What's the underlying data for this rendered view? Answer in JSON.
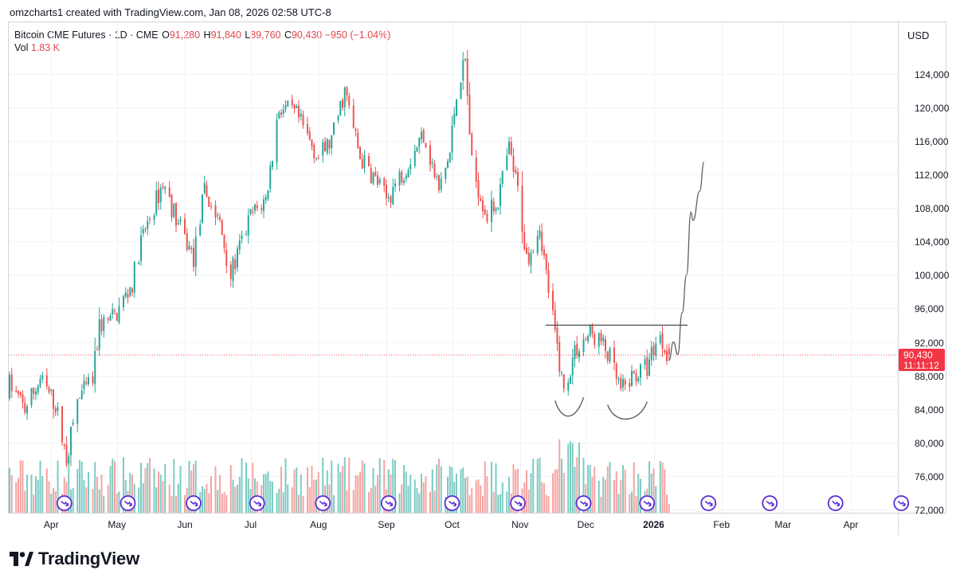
{
  "caption": "omzcharts1 created with TradingView.com, Jan 08, 2026 02:58 UTC-8",
  "legend": {
    "symbol": "Bitcoin CME Futures · 1D · CME",
    "o_label": "O",
    "o_value": "91,280",
    "h_label": "H",
    "h_value": "91,840",
    "l_label": "L",
    "l_value": "89,760",
    "c_label": "C",
    "c_value": "90,430",
    "change": "−950 (−1.04%)",
    "vol_label": "Vol",
    "vol_value": "1.83 K"
  },
  "currency": "USD",
  "brand": "TradingView",
  "colors": {
    "up": "#26a69a",
    "down": "#ef5350",
    "up_vol": "#7dcbc3",
    "down_vol": "#f5a4a2",
    "event": "#5b2bd6",
    "drawing": "#555555"
  },
  "chart_data": {
    "type": "candlestick",
    "title": "Bitcoin CME Futures · 1D · CME",
    "y_axis": {
      "range": [
        71000,
        130000
      ],
      "ticks": [
        72000,
        76000,
        80000,
        84000,
        88000,
        92000,
        96000,
        100000,
        104000,
        108000,
        112000,
        116000,
        120000,
        124000
      ],
      "tick_labels": [
        "72,000",
        "76,000",
        "80,000",
        "84,000",
        "88,000",
        "92,000",
        "96,000",
        "100,000",
        "104,000",
        "108,000",
        "112,000",
        "116,000",
        "120,000",
        "124,000"
      ]
    },
    "x_axis": {
      "labels": [
        "Apr",
        "May",
        "Jun",
        "Jul",
        "Aug",
        "Sep",
        "Oct",
        "Nov",
        "Dec",
        "2026",
        "Feb",
        "Mar",
        "Apr"
      ],
      "bold_label": "2026",
      "start": "2025-03-13",
      "end": "2026-05-01"
    },
    "last_price": {
      "value": 90430,
      "label": "90,430",
      "countdown": "11:11:12"
    },
    "price_waypoints": [
      [
        "2025-03-13",
        87000
      ],
      [
        "2025-03-20",
        84000
      ],
      [
        "2025-03-27",
        87500
      ],
      [
        "2025-04-03",
        84500
      ],
      [
        "2025-04-08",
        78000
      ],
      [
        "2025-04-13",
        85000
      ],
      [
        "2025-04-20",
        87500
      ],
      [
        "2025-04-23",
        94000
      ],
      [
        "2025-04-30",
        95000
      ],
      [
        "2025-05-08",
        99000
      ],
      [
        "2025-05-12",
        104000
      ],
      [
        "2025-05-22",
        111000
      ],
      [
        "2025-05-29",
        106000
      ],
      [
        "2025-06-05",
        102000
      ],
      [
        "2025-06-10",
        110000
      ],
      [
        "2025-06-17",
        106000
      ],
      [
        "2025-06-22",
        100000
      ],
      [
        "2025-07-01",
        107000
      ],
      [
        "2025-07-08",
        109000
      ],
      [
        "2025-07-14",
        120000
      ],
      [
        "2025-07-22",
        119000
      ],
      [
        "2025-08-01",
        114000
      ],
      [
        "2025-08-07",
        116000
      ],
      [
        "2025-08-13",
        122000
      ],
      [
        "2025-08-20",
        114000
      ],
      [
        "2025-08-28",
        111000
      ],
      [
        "2025-09-01",
        109000
      ],
      [
        "2025-09-10",
        113000
      ],
      [
        "2025-09-18",
        117000
      ],
      [
        "2025-09-25",
        110000
      ],
      [
        "2025-09-30",
        114500
      ],
      [
        "2025-10-03",
        122000
      ],
      [
        "2025-10-07",
        125500
      ],
      [
        "2025-10-10",
        113000
      ],
      [
        "2025-10-17",
        107000
      ],
      [
        "2025-10-22",
        109000
      ],
      [
        "2025-10-27",
        115000
      ],
      [
        "2025-10-31",
        110000
      ],
      [
        "2025-11-04",
        102000
      ],
      [
        "2025-11-10",
        106000
      ],
      [
        "2025-11-13",
        100000
      ],
      [
        "2025-11-17",
        93000
      ],
      [
        "2025-11-21",
        86000
      ],
      [
        "2025-11-26",
        91000
      ],
      [
        "2025-12-03",
        93000
      ],
      [
        "2025-12-08",
        92000
      ],
      [
        "2025-12-12",
        90000
      ],
      [
        "2025-12-17",
        86000
      ],
      [
        "2025-12-23",
        88000
      ],
      [
        "2025-12-29",
        89000
      ],
      [
        "2026-01-03",
        93000
      ],
      [
        "2026-01-08",
        90430
      ]
    ],
    "annotations": {
      "resistance_line": {
        "price": 94000,
        "from": "2025-11-17",
        "to": "2026-01-15"
      },
      "cup_1": {
        "from": "2025-11-17",
        "to": "2025-11-30",
        "top_price": 85000,
        "bottom_price": 83800
      },
      "cup_2": {
        "from": "2025-12-11",
        "to": "2025-12-29",
        "top_price": 84500,
        "bottom_price": 83500
      },
      "projection": [
        [
          "2026-01-08",
          89800
        ],
        [
          "2026-01-10",
          92000
        ],
        [
          "2026-01-12",
          90500
        ],
        [
          "2026-01-14",
          95500
        ],
        [
          "2026-01-16",
          100000
        ],
        [
          "2026-01-18",
          107500
        ],
        [
          "2026-01-19",
          106500
        ],
        [
          "2026-01-22",
          110000
        ],
        [
          "2026-01-24",
          113500
        ]
      ]
    },
    "event_markers": [
      "2025-04-07",
      "2025-05-06",
      "2025-06-05",
      "2025-07-04",
      "2025-08-03",
      "2025-09-02",
      "2025-10-01",
      "2025-10-31",
      "2025-11-30",
      "2025-12-29",
      "2026-01-26",
      "2026-02-23",
      "2026-03-25",
      "2026-04-24"
    ]
  }
}
